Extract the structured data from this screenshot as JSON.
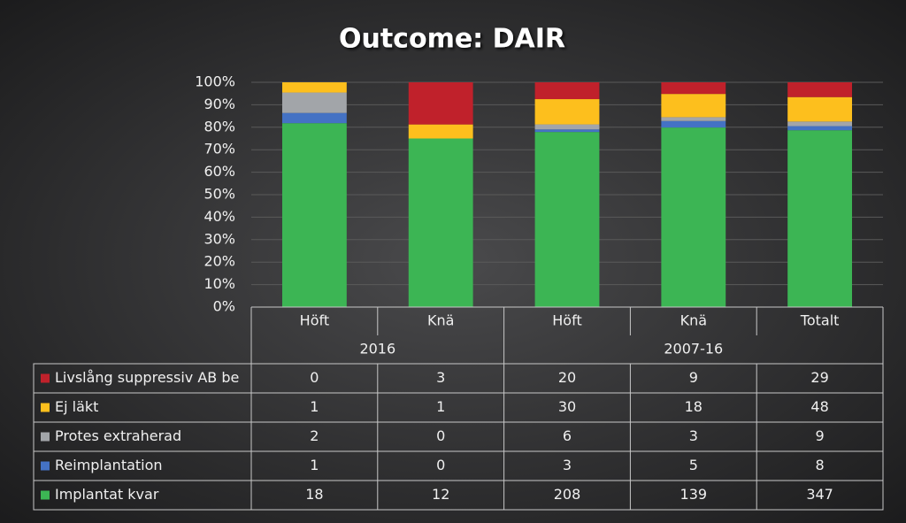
{
  "chart_data": {
    "type": "bar",
    "stacking": "percent",
    "title": "Outcome: DAIR",
    "groups": [
      {
        "label": "2016",
        "categories": [
          "Höft",
          "Knä"
        ]
      },
      {
        "label": "2007-16",
        "categories": [
          "Höft",
          "Knä",
          "Totalt"
        ]
      }
    ],
    "series": [
      {
        "name": "Livslång suppressiv AB be",
        "color": "#c0212b",
        "values": [
          0,
          3,
          20,
          9,
          29
        ]
      },
      {
        "name": "Ej läkt",
        "color": "#fdbf1d",
        "values": [
          1,
          1,
          30,
          18,
          48
        ]
      },
      {
        "name": "Protes extraherad",
        "color": "#a2a5a9",
        "values": [
          2,
          0,
          6,
          3,
          9
        ]
      },
      {
        "name": "Reimplantation",
        "color": "#4472c4",
        "values": [
          1,
          0,
          3,
          5,
          8
        ]
      },
      {
        "name": "Implantat kvar",
        "color": "#3cb554",
        "values": [
          18,
          12,
          208,
          139,
          347
        ]
      }
    ],
    "ylim": [
      0,
      100
    ],
    "yticks": [
      {
        "value": 0,
        "label": "0%"
      },
      {
        "value": 10,
        "label": "10%"
      },
      {
        "value": 20,
        "label": "20%"
      },
      {
        "value": 30,
        "label": "30%"
      },
      {
        "value": 40,
        "label": "40%"
      },
      {
        "value": 50,
        "label": "50%"
      },
      {
        "value": 60,
        "label": "60%"
      },
      {
        "value": 70,
        "label": "70%"
      },
      {
        "value": 80,
        "label": "80%"
      },
      {
        "value": 90,
        "label": "90%"
      },
      {
        "value": 100,
        "label": "100%"
      }
    ],
    "grid": true
  }
}
